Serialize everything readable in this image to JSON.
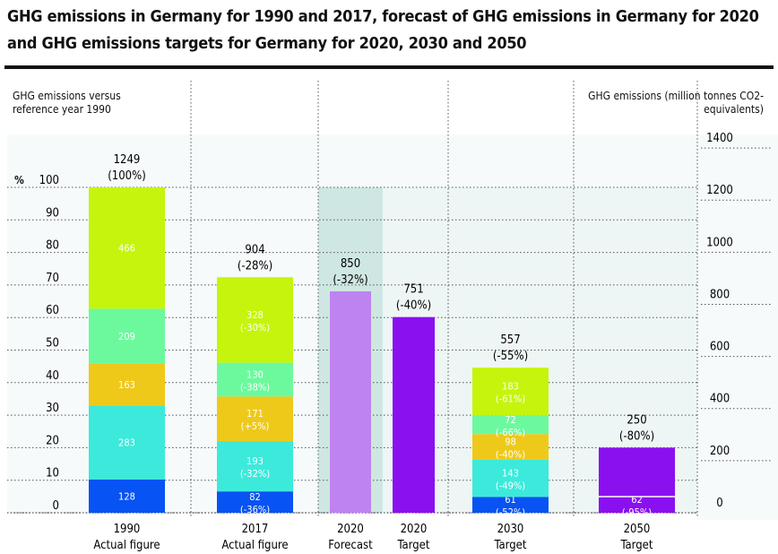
{
  "chart_data": {
    "type": "bar",
    "title": "GHG emissions in Germany for 1990 and 2017, forecast of GHG emissions in Germany for 2020 and GHG emissions targets for Germany for 2020, 2030 and 2050",
    "ylabel_left": "GHG emissions versus reference year 1990",
    "ylabel_left_unit": "%",
    "ylabel_right": "GHG emissions (million tonnes CO2-equivalents)",
    "left_ticks": [
      "0",
      "10",
      "20",
      "30",
      "40",
      "50",
      "60",
      "70",
      "80",
      "90",
      "100"
    ],
    "right_ticks": [
      "0",
      "200",
      "400",
      "600",
      "800",
      "1000",
      "1200",
      "1400"
    ],
    "ylim_left": [
      0,
      100
    ],
    "ylim_right": [
      0,
      1249
    ],
    "colors": {
      "lime": "#c5f50c",
      "mint": "#6cf99e",
      "yellow": "#efc91a",
      "turquoise": "#3ceadb",
      "blue": "#0753f3",
      "lilac": "#bf82f1",
      "purple": "#8a10f0"
    },
    "bars": [
      {
        "year": "1990",
        "label": "Actual figure",
        "total": "1249",
        "change": "(100%)",
        "segments": [
          {
            "value": 128,
            "text": "128",
            "pct": "",
            "color": "blue"
          },
          {
            "value": 283,
            "text": "283",
            "pct": "",
            "color": "turquoise"
          },
          {
            "value": 163,
            "text": "163",
            "pct": "",
            "color": "yellow"
          },
          {
            "value": 209,
            "text": "209",
            "pct": "",
            "color": "mint"
          },
          {
            "value": 466,
            "text": "466",
            "pct": "",
            "color": "lime"
          }
        ]
      },
      {
        "year": "2017",
        "label": "Actual figure",
        "total": "904",
        "change": "(-28%)",
        "segments": [
          {
            "value": 82,
            "text": "82",
            "pct": "(-36%)",
            "color": "blue"
          },
          {
            "value": 193,
            "text": "193",
            "pct": "(-32%)",
            "color": "turquoise"
          },
          {
            "value": 171,
            "text": "171",
            "pct": "(+5%)",
            "color": "yellow"
          },
          {
            "value": 130,
            "text": "130",
            "pct": "(-38%)",
            "color": "mint"
          },
          {
            "value": 328,
            "text": "328",
            "pct": "(-30%)",
            "color": "lime"
          }
        ]
      },
      {
        "year": "2020",
        "label": "Forecast",
        "total": "850",
        "change": "(-32%)",
        "segments": [
          {
            "value": 850,
            "text": "",
            "pct": "",
            "color": "lilac"
          }
        ]
      },
      {
        "year": "2020",
        "label": "Target",
        "total": "751",
        "change": "(-40%)",
        "segments": [
          {
            "value": 751,
            "text": "",
            "pct": "",
            "color": "purple"
          }
        ]
      },
      {
        "year": "2030",
        "label": "Target",
        "total": "557",
        "change": "(-55%)",
        "segments": [
          {
            "value": 61,
            "text": "61",
            "pct": "(-52%)",
            "color": "blue"
          },
          {
            "value": 143,
            "text": "143",
            "pct": "(-49%)",
            "color": "turquoise"
          },
          {
            "value": 98,
            "text": "98",
            "pct": "(-40%)",
            "color": "yellow"
          },
          {
            "value": 72,
            "text": "72",
            "pct": "(-66%)",
            "color": "mint"
          },
          {
            "value": 183,
            "text": "183",
            "pct": "(-61%)",
            "color": "lime"
          }
        ]
      },
      {
        "year": "2050",
        "label": "Target",
        "total": "250",
        "change": "(-80%)",
        "segments": [
          {
            "value": 62,
            "text": "62",
            "pct": "(-95%)",
            "color": "purple"
          },
          {
            "value": 188,
            "text": "",
            "pct": "",
            "color": "purple"
          }
        ]
      }
    ]
  }
}
